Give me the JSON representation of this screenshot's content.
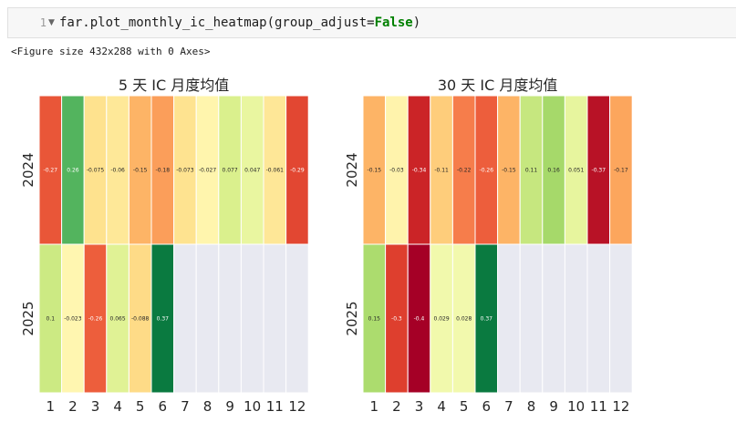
{
  "code_cell": {
    "line_number": "1",
    "code_prefix": "far.plot_monthly_ic_heatmap(group_adjust=",
    "code_keyword": "False",
    "code_suffix": ")"
  },
  "output": {
    "text": "<Figure size 432x288 with 0 Axes>"
  },
  "chart_data": [
    {
      "type": "heatmap",
      "title": "5 天 IC 月度均值",
      "x": [
        "1",
        "2",
        "3",
        "4",
        "5",
        "6",
        "7",
        "8",
        "9",
        "10",
        "11",
        "12"
      ],
      "y": [
        "2024",
        "2025"
      ],
      "values": [
        [
          -0.27,
          0.26,
          -0.075,
          -0.06,
          -0.15,
          -0.18,
          -0.073,
          -0.027,
          0.077,
          0.047,
          -0.061,
          -0.29
        ],
        [
          0.1,
          -0.023,
          -0.26,
          0.065,
          -0.088,
          0.37,
          null,
          null,
          null,
          null,
          null,
          null
        ]
      ],
      "labels": [
        [
          "-0.27",
          "0.26",
          "-0.075",
          "-0.06",
          "-0.15",
          "-0.18",
          "-0.073",
          "-0.027",
          "0.077",
          "0.047",
          "-0.061",
          "-0.29"
        ],
        [
          "0.1",
          "-0.023",
          "-0.26",
          "0.065",
          "-0.088",
          "0.37",
          "",
          "",
          "",
          "",
          "",
          ""
        ]
      ],
      "colormap": "RdYlGn",
      "vmin": -0.4,
      "vmax": 0.4,
      "missing_color": "#e8e9f1"
    },
    {
      "type": "heatmap",
      "title": "30 天 IC 月度均值",
      "x": [
        "1",
        "2",
        "3",
        "4",
        "5",
        "6",
        "7",
        "8",
        "9",
        "10",
        "11",
        "12"
      ],
      "y": [
        "2024",
        "2025"
      ],
      "values": [
        [
          -0.15,
          -0.03,
          -0.34,
          -0.11,
          -0.22,
          -0.26,
          -0.15,
          0.11,
          0.16,
          0.051,
          -0.37,
          -0.17
        ],
        [
          0.15,
          -0.3,
          -0.4,
          0.029,
          0.028,
          0.37,
          null,
          null,
          null,
          null,
          null,
          null
        ]
      ],
      "labels": [
        [
          "-0.15",
          "-0.03",
          "-0.34",
          "-0.11",
          "-0.22",
          "-0.26",
          "-0.15",
          "0.11",
          "0.16",
          "0.051",
          "-0.37",
          "-0.17"
        ],
        [
          "0.15",
          "-0.3",
          "-0.4",
          "0.029",
          "0.028",
          "0.37",
          "",
          "",
          "",
          "",
          "",
          ""
        ]
      ],
      "colormap": "RdYlGn",
      "vmin": -0.4,
      "vmax": 0.4,
      "missing_color": "#e8e9f1"
    }
  ]
}
